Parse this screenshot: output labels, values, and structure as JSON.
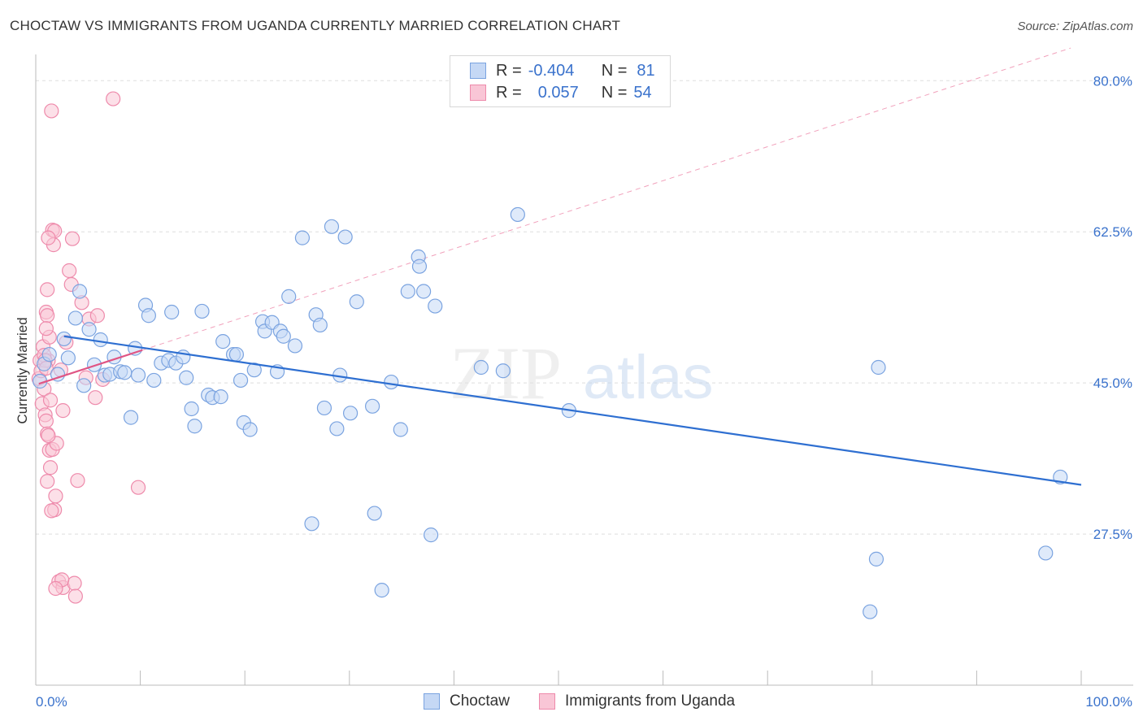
{
  "header": {
    "title": "CHOCTAW VS IMMIGRANTS FROM UGANDA CURRENTLY MARRIED CORRELATION CHART",
    "source": "Source: ZipAtlas.com"
  },
  "legend_stats": {
    "rows": [
      {
        "r_label": "R =",
        "r_value": "-0.404",
        "n_label": "N =",
        "n_value": "81"
      },
      {
        "r_label": "R =",
        "r_value": "0.057",
        "n_label": "N =",
        "n_value": "54"
      }
    ]
  },
  "watermark": {
    "zip": "ZIP",
    "atlas": "atlas"
  },
  "colors": {
    "choctaw_fill": "#c5d8f5",
    "choctaw_stroke": "#7aa3e0",
    "choctaw_line": "#2e6fd1",
    "uganda_fill": "#f9c6d6",
    "uganda_stroke": "#ee8aab",
    "uganda_line": "#e05584",
    "axis_text": "#3a72cc",
    "grid": "#dddddd"
  },
  "chart_data": {
    "type": "scatter",
    "title": "CHOCTAW VS IMMIGRANTS FROM UGANDA CURRENTLY MARRIED CORRELATION CHART",
    "xlabel": "",
    "ylabel": "Currently Married",
    "xlim": [
      0,
      100
    ],
    "ylim": [
      10,
      82
    ],
    "x_tick_labels": [
      "0.0%",
      "100.0%"
    ],
    "y_ticks": [
      27.5,
      45.0,
      62.5,
      80.0
    ],
    "y_tick_labels": [
      "27.5%",
      "45.0%",
      "62.5%",
      "80.0%"
    ],
    "grid": true,
    "legend_position": "bottom",
    "series": [
      {
        "name": "Choctaw",
        "points": [
          [
            0.8,
            47.2
          ],
          [
            1.3,
            48.3
          ],
          [
            2.1,
            46.0
          ],
          [
            2.7,
            50.1
          ],
          [
            3.1,
            47.9
          ],
          [
            3.8,
            52.5
          ],
          [
            4.2,
            55.6
          ],
          [
            4.6,
            44.7
          ],
          [
            5.1,
            51.2
          ],
          [
            5.6,
            47.1
          ],
          [
            6.2,
            50.0
          ],
          [
            6.6,
            45.9
          ],
          [
            7.1,
            46.0
          ],
          [
            7.5,
            48.0
          ],
          [
            8.1,
            46.3
          ],
          [
            8.5,
            46.2
          ],
          [
            9.1,
            41.0
          ],
          [
            9.5,
            49.0
          ],
          [
            9.8,
            45.9
          ],
          [
            10.5,
            54.0
          ],
          [
            10.8,
            52.8
          ],
          [
            11.3,
            45.3
          ],
          [
            12.0,
            47.3
          ],
          [
            12.7,
            47.6
          ],
          [
            13.0,
            53.2
          ],
          [
            13.4,
            47.3
          ],
          [
            14.1,
            48.0
          ],
          [
            14.4,
            45.6
          ],
          [
            14.9,
            42.0
          ],
          [
            15.2,
            40.0
          ],
          [
            15.9,
            53.3
          ],
          [
            16.5,
            43.6
          ],
          [
            16.9,
            43.3
          ],
          [
            17.7,
            43.4
          ],
          [
            17.9,
            49.8
          ],
          [
            18.9,
            48.3
          ],
          [
            19.2,
            48.3
          ],
          [
            19.6,
            45.3
          ],
          [
            19.9,
            40.4
          ],
          [
            20.5,
            39.6
          ],
          [
            20.9,
            46.5
          ],
          [
            21.7,
            52.1
          ],
          [
            21.9,
            51.0
          ],
          [
            22.6,
            52.0
          ],
          [
            23.1,
            46.3
          ],
          [
            23.4,
            51.0
          ],
          [
            23.7,
            50.4
          ],
          [
            24.2,
            55.0
          ],
          [
            24.8,
            49.3
          ],
          [
            25.5,
            61.8
          ],
          [
            26.4,
            28.7
          ],
          [
            26.8,
            52.9
          ],
          [
            27.2,
            51.7
          ],
          [
            27.6,
            42.1
          ],
          [
            28.3,
            63.1
          ],
          [
            28.8,
            39.7
          ],
          [
            29.1,
            45.9
          ],
          [
            29.6,
            61.9
          ],
          [
            30.1,
            41.5
          ],
          [
            30.7,
            54.4
          ],
          [
            32.2,
            42.3
          ],
          [
            32.4,
            29.9
          ],
          [
            33.1,
            21.0
          ],
          [
            34.0,
            45.1
          ],
          [
            34.9,
            39.6
          ],
          [
            35.6,
            55.6
          ],
          [
            37.1,
            55.6
          ],
          [
            37.8,
            27.4
          ],
          [
            38.2,
            53.9
          ],
          [
            42.6,
            46.8
          ],
          [
            44.7,
            46.4
          ],
          [
            46.1,
            64.5
          ],
          [
            51.0,
            41.8
          ],
          [
            79.8,
            18.5
          ],
          [
            80.4,
            24.6
          ],
          [
            80.6,
            46.8
          ],
          [
            96.6,
            25.3
          ],
          [
            98.0,
            34.1
          ],
          [
            36.6,
            59.6
          ],
          [
            36.7,
            58.5
          ],
          [
            0.4,
            45.2
          ]
        ],
        "trend": {
          "x": [
            2.7,
            100
          ],
          "y": [
            50.4,
            33.2
          ]
        }
      },
      {
        "name": "Immigrants from Uganda",
        "points": [
          [
            0.3,
            45.5
          ],
          [
            0.4,
            47.6
          ],
          [
            0.5,
            46.4
          ],
          [
            0.6,
            42.6
          ],
          [
            0.7,
            49.2
          ],
          [
            0.8,
            44.3
          ],
          [
            0.9,
            41.3
          ],
          [
            1.0,
            40.6
          ],
          [
            1.1,
            39.1
          ],
          [
            1.2,
            47.6
          ],
          [
            1.3,
            50.3
          ],
          [
            1.3,
            37.2
          ],
          [
            1.4,
            35.2
          ],
          [
            1.6,
            37.3
          ],
          [
            1.8,
            30.3
          ],
          [
            1.9,
            31.9
          ],
          [
            2.0,
            38.0
          ],
          [
            2.2,
            22.0
          ],
          [
            2.4,
            46.5
          ],
          [
            2.6,
            21.3
          ],
          [
            2.9,
            49.7
          ],
          [
            3.2,
            58.0
          ],
          [
            3.4,
            56.4
          ],
          [
            3.5,
            61.7
          ],
          [
            3.7,
            21.8
          ],
          [
            3.8,
            20.3
          ],
          [
            4.0,
            33.7
          ],
          [
            4.4,
            54.3
          ],
          [
            4.8,
            45.6
          ],
          [
            5.1,
            52.4
          ],
          [
            5.7,
            43.3
          ],
          [
            5.9,
            52.8
          ],
          [
            6.4,
            45.4
          ],
          [
            7.4,
            77.9
          ],
          [
            9.8,
            32.9
          ],
          [
            1.5,
            76.5
          ],
          [
            1.6,
            62.7
          ],
          [
            1.8,
            62.6
          ],
          [
            1.7,
            61.0
          ],
          [
            1.2,
            61.8
          ],
          [
            1.1,
            55.8
          ],
          [
            1.0,
            53.2
          ],
          [
            1.1,
            52.8
          ],
          [
            1.0,
            51.3
          ],
          [
            0.8,
            48.2
          ],
          [
            0.9,
            47.6
          ],
          [
            1.0,
            46.7
          ],
          [
            1.1,
            33.6
          ],
          [
            1.2,
            38.9
          ],
          [
            1.4,
            43.0
          ],
          [
            1.5,
            30.2
          ],
          [
            2.5,
            22.2
          ],
          [
            2.6,
            41.8
          ],
          [
            1.9,
            21.2
          ]
        ],
        "trend": {
          "x": [
            0.3,
            10.2
          ],
          "y": [
            44.9,
            48.8
          ]
        }
      }
    ]
  },
  "bottom_legend": {
    "items": [
      {
        "label": "Choctaw"
      },
      {
        "label": "Immigrants from Uganda"
      }
    ]
  }
}
